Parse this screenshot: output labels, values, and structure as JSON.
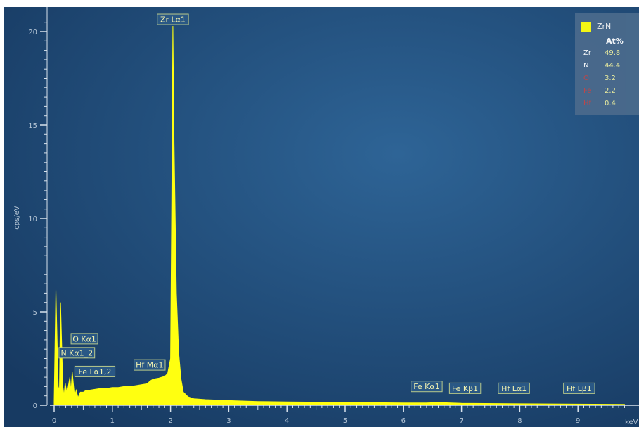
{
  "chart_data": {
    "type": "area",
    "title": "",
    "xlabel": "keV",
    "ylabel": "cps/eV",
    "xlim": [
      -0.1,
      9.8
    ],
    "ylim": [
      -0.5,
      21
    ],
    "x_ticks": [
      "0",
      "1",
      "2",
      "3",
      "4",
      "5",
      "6",
      "7",
      "8",
      "9"
    ],
    "y_ticks": [
      "0",
      "5",
      "10",
      "15",
      "20"
    ],
    "series": [
      {
        "name": "ZrN",
        "color": "#ffff10",
        "x": [
          0.0,
          0.03,
          0.07,
          0.09,
          0.11,
          0.15,
          0.17,
          0.19,
          0.22,
          0.27,
          0.29,
          0.31,
          0.35,
          0.38,
          0.41,
          0.45,
          0.5,
          0.55,
          0.6,
          0.7,
          0.8,
          0.9,
          1.0,
          1.1,
          1.2,
          1.3,
          1.4,
          1.5,
          1.6,
          1.65,
          1.7,
          1.8,
          1.9,
          1.95,
          2.0,
          2.02,
          2.04,
          2.06,
          2.1,
          2.14,
          2.18,
          2.22,
          2.3,
          2.4,
          2.6,
          3.0,
          3.5,
          4.0,
          5.0,
          6.0,
          6.4,
          6.6,
          7.0,
          8.0,
          9.0,
          9.8
        ],
        "values": [
          0.2,
          6.2,
          1.0,
          0.8,
          5.5,
          1.0,
          0.5,
          1.2,
          0.6,
          1.5,
          0.7,
          1.8,
          0.5,
          0.8,
          0.4,
          0.7,
          0.7,
          0.8,
          0.8,
          0.85,
          0.9,
          0.9,
          0.95,
          0.95,
          1.0,
          1.0,
          1.05,
          1.1,
          1.15,
          1.3,
          1.4,
          1.45,
          1.55,
          1.7,
          2.5,
          11.0,
          20.3,
          14.0,
          6.0,
          2.8,
          1.4,
          0.7,
          0.45,
          0.35,
          0.3,
          0.25,
          0.2,
          0.18,
          0.15,
          0.12,
          0.12,
          0.15,
          0.1,
          0.08,
          0.06,
          0.05
        ]
      }
    ],
    "peak_labels": [
      {
        "text": "Zr Lα1",
        "x": 2.04,
        "y": 20.3
      },
      {
        "text": "O Kα1",
        "x": 0.52,
        "y": 3.2
      },
      {
        "text": "N Kα1_2",
        "x": 0.39,
        "y": 2.45
      },
      {
        "text": "Fe Lα1,2",
        "x": 0.7,
        "y": 1.45
      },
      {
        "text": "Hf Mα1",
        "x": 1.64,
        "y": 1.8
      },
      {
        "text": "Fe Kα1",
        "x": 6.4,
        "y": 0.65
      },
      {
        "text": "Fe Kβ1",
        "x": 7.06,
        "y": 0.55
      },
      {
        "text": "Hf Lα1",
        "x": 7.9,
        "y": 0.55
      },
      {
        "text": "Hf Lβ1",
        "x": 9.02,
        "y": 0.55
      }
    ],
    "legend": {
      "position": "top-right",
      "series_name": "ZrN",
      "header": "At%",
      "rows": [
        {
          "element": "Zr",
          "value": "49.8",
          "highlight": "normal"
        },
        {
          "element": "N",
          "value": "44.4",
          "highlight": "normal"
        },
        {
          "element": "O",
          "value": "3.2",
          "highlight": "red"
        },
        {
          "element": "Fe",
          "value": "2.2",
          "highlight": "red"
        },
        {
          "element": "Hf",
          "value": "0.4",
          "highlight": "red"
        }
      ]
    },
    "colors": {
      "background_light": "#2b5f90",
      "background_dark": "#173a60",
      "fill": "#ffff10",
      "axis": "#d8e2ec"
    }
  }
}
